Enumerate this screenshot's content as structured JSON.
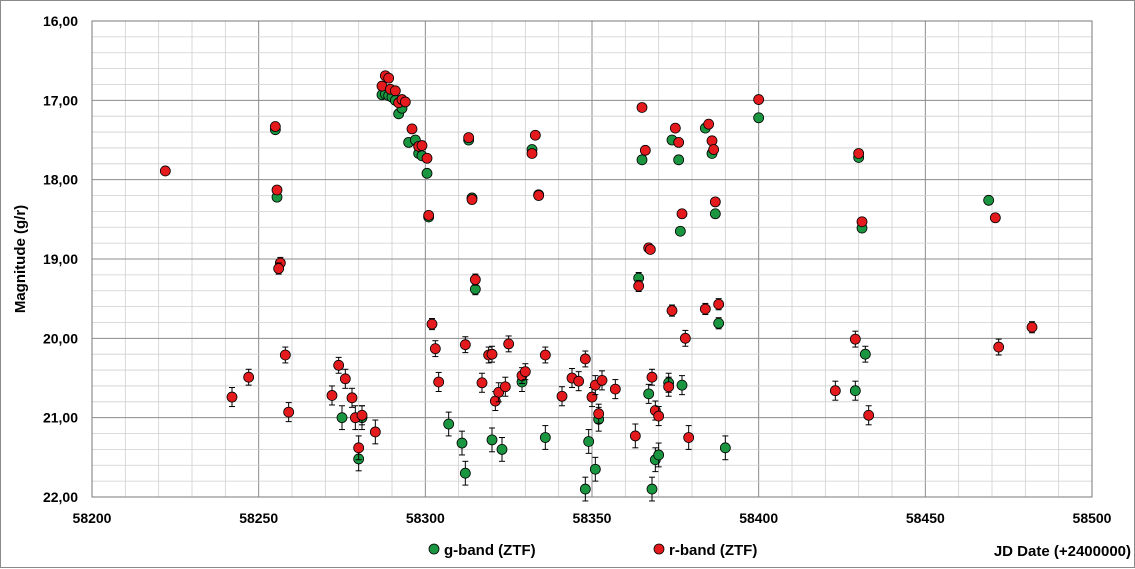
{
  "chart_data": {
    "type": "scatter",
    "title": "",
    "xlabel": "JD Date (+2400000)",
    "ylabel": "Magnitude (g/r)",
    "xlim": [
      58200,
      58500
    ],
    "ylim": [
      16.0,
      22.0
    ],
    "y_inverted": true,
    "grid": true,
    "x_ticks": [
      "58200",
      "58250",
      "58300",
      "58350",
      "58400",
      "58450",
      "58500"
    ],
    "y_ticks": [
      "16,00",
      "17,00",
      "18,00",
      "19,00",
      "20,00",
      "21,00",
      "22,00"
    ],
    "legend_position": "bottom-center",
    "series": [
      {
        "name": "g-band (ZTF)",
        "color": "#1a9641",
        "points": [
          [
            58255,
            17.37
          ],
          [
            58255.5,
            18.22
          ],
          [
            58275,
            21.0
          ],
          [
            58280,
            21.52
          ],
          [
            58281,
            21.0
          ],
          [
            58287,
            16.93
          ],
          [
            58288,
            16.92
          ],
          [
            58289,
            16.94
          ],
          [
            58290,
            16.96
          ],
          [
            58291,
            17.0
          ],
          [
            58292,
            17.17
          ],
          [
            58293,
            17.1
          ],
          [
            58295,
            17.53
          ],
          [
            58297,
            17.5
          ],
          [
            58298,
            17.67
          ],
          [
            58299,
            17.7
          ],
          [
            58300.5,
            17.92
          ],
          [
            58301,
            18.47
          ],
          [
            58307,
            21.08
          ],
          [
            58311,
            21.32
          ],
          [
            58312,
            21.7
          ],
          [
            58313,
            17.5
          ],
          [
            58314,
            18.23
          ],
          [
            58315,
            19.38
          ],
          [
            58320,
            21.28
          ],
          [
            58323,
            21.4
          ],
          [
            58329,
            20.55
          ],
          [
            58332,
            17.62
          ],
          [
            58334,
            18.19
          ],
          [
            58336,
            21.25
          ],
          [
            58348,
            21.9
          ],
          [
            58349,
            21.3
          ],
          [
            58351,
            21.65
          ],
          [
            58352,
            21.02
          ],
          [
            58364,
            19.24
          ],
          [
            58365,
            17.75
          ],
          [
            58367,
            20.7
          ],
          [
            58368,
            21.9
          ],
          [
            58369,
            21.53
          ],
          [
            58370,
            21.47
          ],
          [
            58373,
            20.56
          ],
          [
            58374,
            17.5
          ],
          [
            58376,
            17.75
          ],
          [
            58376.5,
            18.65
          ],
          [
            58377,
            20.59
          ],
          [
            58384,
            17.35
          ],
          [
            58386,
            17.67
          ],
          [
            58387,
            18.43
          ],
          [
            58388,
            19.81
          ],
          [
            58390,
            21.38
          ],
          [
            58400,
            17.22
          ],
          [
            58429,
            20.66
          ],
          [
            58430,
            17.72
          ],
          [
            58431,
            18.61
          ],
          [
            58432,
            20.2
          ],
          [
            58469,
            18.26
          ]
        ]
      },
      {
        "name": "r-band (ZTF)",
        "color": "#e41a1c",
        "points": [
          [
            58222,
            17.89
          ],
          [
            58242,
            20.74
          ],
          [
            58247,
            20.49
          ],
          [
            58255,
            17.33
          ],
          [
            58255.5,
            18.13
          ],
          [
            58256.5,
            19.05
          ],
          [
            58256,
            19.12
          ],
          [
            58258,
            20.21
          ],
          [
            58259,
            20.93
          ],
          [
            58272,
            20.72
          ],
          [
            58274,
            20.34
          ],
          [
            58276,
            20.51
          ],
          [
            58278,
            20.75
          ],
          [
            58279,
            21.0
          ],
          [
            58280,
            21.38
          ],
          [
            58281,
            20.97
          ],
          [
            58285,
            21.18
          ],
          [
            58287,
            16.82
          ],
          [
            58288,
            16.69
          ],
          [
            58289,
            16.72
          ],
          [
            58289.5,
            16.86
          ],
          [
            58291,
            16.88
          ],
          [
            58292,
            17.03
          ],
          [
            58293,
            16.99
          ],
          [
            58294,
            17.02
          ],
          [
            58296,
            17.36
          ],
          [
            58298,
            17.58
          ],
          [
            58299,
            17.57
          ],
          [
            58300.5,
            17.73
          ],
          [
            58301,
            18.45
          ],
          [
            58302,
            19.82
          ],
          [
            58303,
            20.13
          ],
          [
            58304,
            20.55
          ],
          [
            58312,
            20.08
          ],
          [
            58313,
            17.47
          ],
          [
            58314,
            18.25
          ],
          [
            58315,
            19.26
          ],
          [
            58317,
            20.56
          ],
          [
            58319,
            20.21
          ],
          [
            58320,
            20.2
          ],
          [
            58321,
            20.79
          ],
          [
            58322,
            20.68
          ],
          [
            58324,
            20.61
          ],
          [
            58325,
            20.07
          ],
          [
            58329,
            20.47
          ],
          [
            58330,
            20.42
          ],
          [
            58332,
            17.67
          ],
          [
            58333,
            17.44
          ],
          [
            58334,
            18.2
          ],
          [
            58336,
            20.21
          ],
          [
            58341,
            20.73
          ],
          [
            58344,
            20.5
          ],
          [
            58346,
            20.54
          ],
          [
            58348,
            20.26
          ],
          [
            58350,
            20.74
          ],
          [
            58351,
            20.59
          ],
          [
            58352,
            20.95
          ],
          [
            58353,
            20.53
          ],
          [
            58357,
            20.64
          ],
          [
            58363,
            21.23
          ],
          [
            58364,
            19.34
          ],
          [
            58365,
            17.09
          ],
          [
            58366,
            17.63
          ],
          [
            58367,
            18.86
          ],
          [
            58367.5,
            18.88
          ],
          [
            58368,
            20.49
          ],
          [
            58369,
            20.91
          ],
          [
            58370,
            20.98
          ],
          [
            58373,
            20.61
          ],
          [
            58374,
            19.65
          ],
          [
            58375,
            17.35
          ],
          [
            58376,
            17.53
          ],
          [
            58377,
            18.43
          ],
          [
            58378,
            20.0
          ],
          [
            58379,
            21.25
          ],
          [
            58384,
            19.63
          ],
          [
            58385,
            17.3
          ],
          [
            58386,
            17.51
          ],
          [
            58386.5,
            17.62
          ],
          [
            58387,
            18.28
          ],
          [
            58388,
            19.57
          ],
          [
            58400,
            16.99
          ],
          [
            58423,
            20.66
          ],
          [
            58429,
            20.01
          ],
          [
            58430,
            17.67
          ],
          [
            58431,
            18.53
          ],
          [
            58433,
            20.97
          ],
          [
            58471,
            18.48
          ],
          [
            58472,
            20.11
          ],
          [
            58482,
            19.86
          ]
        ]
      }
    ]
  }
}
